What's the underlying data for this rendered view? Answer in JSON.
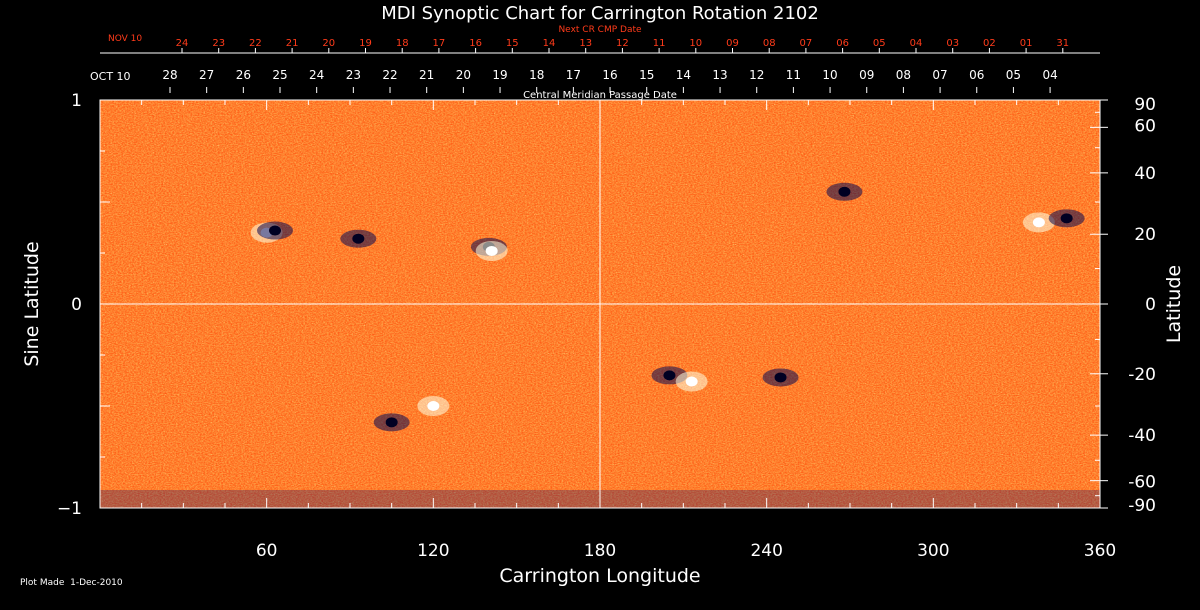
{
  "chart_data": {
    "type": "heatmap",
    "title": "MDI Synoptic Chart for Carrington Rotation 2102",
    "xlabel": "Carrington Longitude",
    "ylabel_left": "Sine Latitude",
    "ylabel_right": "Latitude",
    "xlim": [
      0,
      360
    ],
    "ylim": [
      -1,
      1
    ],
    "x_ticks": [
      60,
      120,
      180,
      240,
      300,
      360
    ],
    "y_ticks_left": [
      {
        "value": -1,
        "label": "−1"
      },
      {
        "value": 0,
        "label": "0"
      },
      {
        "value": 1,
        "label": "1"
      }
    ],
    "y_ticks_right": [
      90,
      60,
      40,
      20,
      0,
      -20,
      -40,
      -60,
      -90
    ],
    "reference_lines": {
      "longitude": 180,
      "sine_latitude": 0
    },
    "colors": {
      "background_field": "#ff5a14",
      "positive_polarity": "#ffffe0",
      "negative_polarity": "#0a0a50"
    },
    "cmp_axis": {
      "label": "Central Meridian Passage Date",
      "start_label": "OCT 10",
      "day_labels": [
        "28",
        "27",
        "26",
        "25",
        "24",
        "23",
        "22",
        "21",
        "20",
        "19",
        "18",
        "17",
        "16",
        "15",
        "14",
        "13",
        "12",
        "11",
        "10",
        "09",
        "08",
        "07",
        "06",
        "05",
        "04"
      ]
    },
    "next_cr_axis": {
      "label": "Next CR CMP Date",
      "start_label": "NOV 10",
      "day_labels": [
        "24",
        "23",
        "22",
        "21",
        "20",
        "19",
        "18",
        "17",
        "16",
        "15",
        "14",
        "13",
        "12",
        "11",
        "10",
        "09",
        "08",
        "07",
        "06",
        "05",
        "04",
        "03",
        "02",
        "01",
        "31"
      ]
    },
    "regions": [
      {
        "lon": 60,
        "sinlat": 0.35,
        "polarity": "positive"
      },
      {
        "lon": 63,
        "sinlat": 0.36,
        "polarity": "negative"
      },
      {
        "lon": 93,
        "sinlat": 0.32,
        "polarity": "negative"
      },
      {
        "lon": 140,
        "sinlat": 0.28,
        "polarity": "negative"
      },
      {
        "lon": 141,
        "sinlat": 0.26,
        "polarity": "positive"
      },
      {
        "lon": 120,
        "sinlat": -0.5,
        "polarity": "positive"
      },
      {
        "lon": 105,
        "sinlat": -0.58,
        "polarity": "negative"
      },
      {
        "lon": 205,
        "sinlat": -0.35,
        "polarity": "negative"
      },
      {
        "lon": 213,
        "sinlat": -0.38,
        "polarity": "positive"
      },
      {
        "lon": 245,
        "sinlat": -0.36,
        "polarity": "negative"
      },
      {
        "lon": 268,
        "sinlat": 0.55,
        "polarity": "negative"
      },
      {
        "lon": 338,
        "sinlat": 0.4,
        "polarity": "positive"
      },
      {
        "lon": 348,
        "sinlat": 0.42,
        "polarity": "negative"
      }
    ]
  },
  "footer": {
    "label": "Plot Made",
    "date": "1-Dec-2010"
  }
}
